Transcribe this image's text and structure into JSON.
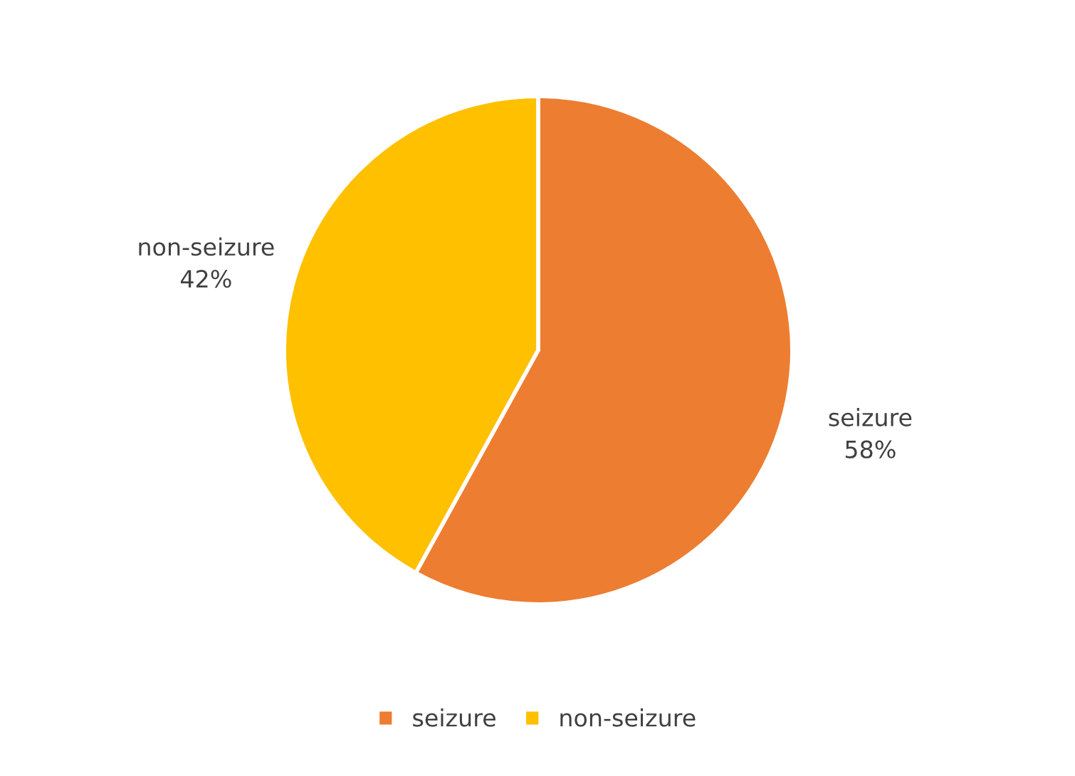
{
  "chart_data": {
    "type": "pie",
    "categories": [
      "seizure",
      "non-seizure"
    ],
    "values": [
      58,
      42
    ],
    "colors": [
      "#ed7d31",
      "#ffc000"
    ],
    "value_labels": [
      "58%",
      "42%"
    ],
    "legend": "bottom"
  }
}
